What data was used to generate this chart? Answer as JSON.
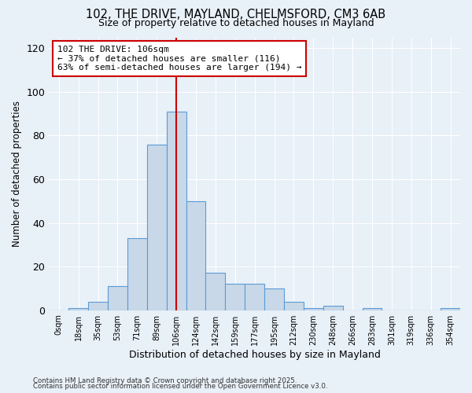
{
  "title_line1": "102, THE DRIVE, MAYLAND, CHELMSFORD, CM3 6AB",
  "title_line2": "Size of property relative to detached houses in Mayland",
  "xlabel": "Distribution of detached houses by size in Mayland",
  "ylabel": "Number of detached properties",
  "bar_labels": [
    "0sqm",
    "18sqm",
    "35sqm",
    "53sqm",
    "71sqm",
    "89sqm",
    "106sqm",
    "124sqm",
    "142sqm",
    "159sqm",
    "177sqm",
    "195sqm",
    "212sqm",
    "230sqm",
    "248sqm",
    "266sqm",
    "283sqm",
    "301sqm",
    "319sqm",
    "336sqm",
    "354sqm"
  ],
  "bar_values": [
    0,
    1,
    4,
    11,
    33,
    76,
    91,
    50,
    17,
    12,
    12,
    10,
    4,
    1,
    2,
    0,
    1,
    0,
    0,
    0,
    1
  ],
  "bar_color": "#c8d8e8",
  "bar_edge_color": "#5b9bd5",
  "bar_width": 1.0,
  "vline_x": 6,
  "vline_color": "#cc0000",
  "annotation_line1": "102 THE DRIVE: 106sqm",
  "annotation_line2": "← 37% of detached houses are smaller (116)",
  "annotation_line3": "63% of semi-detached houses are larger (194) →",
  "annotation_box_color": "#ffffff",
  "annotation_box_edge": "#cc0000",
  "ylim": [
    0,
    125
  ],
  "yticks": [
    0,
    20,
    40,
    60,
    80,
    100,
    120
  ],
  "bg_color": "#e8f0f8",
  "footer_line1": "Contains HM Land Registry data © Crown copyright and database right 2025.",
  "footer_line2": "Contains public sector information licensed under the Open Government Licence v3.0."
}
